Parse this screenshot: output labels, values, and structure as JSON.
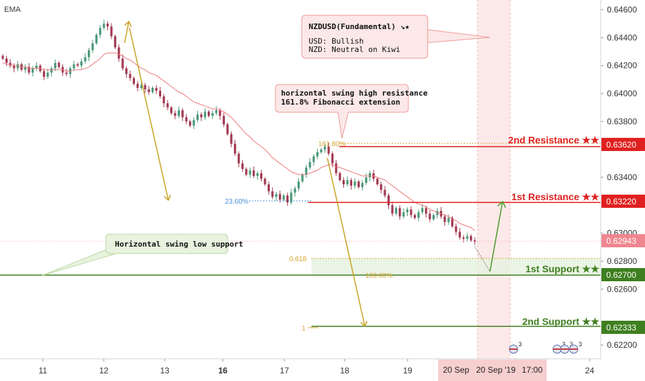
{
  "indicator_label": "EMA",
  "colors": {
    "bull": "#4c9a7a",
    "bear": "#a23a52",
    "ema": "#ec7a7a",
    "resistance": "#e02020",
    "support": "#3f7f1f",
    "fib": "#d9a233",
    "arrow_gold": "#c9a227",
    "arrow_green": "#4b9a2a",
    "price_tag": "#f0868f",
    "axis_text": "#333333"
  },
  "callouts": {
    "fundamental_title": "NZDUSD(Fundamental) ↘★",
    "fundamental_line1": "USD: Bullish",
    "fundamental_line2": "NZD: Neutral on Kiwi",
    "resistance_note_1": "horizontal swing high resistance",
    "resistance_note_2": "161.8% Fibonacci extension",
    "support_note": "Horizontal swing low support"
  },
  "levels": {
    "r2_label": "2nd Resistance ★★",
    "r2_price": "0.63620",
    "r1_label": "1st Resistance ★★",
    "r1_price": "0.63220",
    "current_price": "0.62943",
    "s1_label": "1st Support ★★",
    "s1_price": "0.62700",
    "s2_label": "2nd Support ★★",
    "s2_price": "0.62333"
  },
  "fib_labels": {
    "f1618": "161.80%",
    "f236": "23.60%",
    "f0618": "0.618",
    "f100": "100.00%",
    "f1": "1"
  },
  "events": {
    "e1": "3",
    "e2": "3",
    "e3": "3",
    "e4": "3"
  },
  "time_labels": {
    "t1": "20 Sep",
    "t2": "20 Sep '19",
    "t3": "17:00"
  },
  "chart_data": {
    "type": "candlestick",
    "symbol": "NZDUSD",
    "x_ticks": [
      "11",
      "12",
      "13",
      "16",
      "17",
      "18",
      "19",
      "24"
    ],
    "y_ticks": [
      "0.64600",
      "0.64400",
      "0.64200",
      "0.64000",
      "0.63800",
      "0.63600",
      "0.63400",
      "0.63200",
      "0.63000",
      "0.62800",
      "0.62600",
      "0.62400",
      "0.62200"
    ],
    "ylim": [
      0.6212,
      0.6468
    ],
    "horizontal_levels": [
      {
        "name": "2nd Resistance",
        "value": 0.6362
      },
      {
        "name": "1st Resistance",
        "value": 0.6322
      },
      {
        "name": "1st Support",
        "value": 0.627
      },
      {
        "name": "2nd Support",
        "value": 0.62333
      }
    ],
    "close_path": [
      0.6425,
      0.6422,
      0.642,
      0.6418,
      0.6421,
      0.6417,
      0.6419,
      0.6415,
      0.6418,
      0.642,
      0.6416,
      0.6412,
      0.6415,
      0.6418,
      0.6422,
      0.6419,
      0.6415,
      0.6414,
      0.6418,
      0.6421,
      0.642,
      0.6423,
      0.6426,
      0.6431,
      0.6436,
      0.6442,
      0.6447,
      0.645,
      0.6448,
      0.6441,
      0.6433,
      0.6425,
      0.6418,
      0.6414,
      0.6411,
      0.6407,
      0.6404,
      0.6406,
      0.6403,
      0.6401,
      0.6404,
      0.6402,
      0.6398,
      0.6393,
      0.639,
      0.6386,
      0.6384,
      0.6388,
      0.6383,
      0.638,
      0.6377,
      0.6381,
      0.6385,
      0.6383,
      0.6387,
      0.6384,
      0.6386,
      0.6388,
      0.6384,
      0.6378,
      0.6371,
      0.6364,
      0.6357,
      0.635,
      0.6346,
      0.6342,
      0.6345,
      0.6341,
      0.6343,
      0.6339,
      0.6335,
      0.633,
      0.6326,
      0.6328,
      0.6324,
      0.6327,
      0.6322,
      0.6329,
      0.6332,
      0.6337,
      0.6342,
      0.6347,
      0.6351,
      0.6355,
      0.6358,
      0.636,
      0.6362,
      0.6357,
      0.635,
      0.6343,
      0.6338,
      0.6335,
      0.6338,
      0.6334,
      0.6337,
      0.6333,
      0.6336,
      0.634,
      0.6343,
      0.6339,
      0.6335,
      0.6331,
      0.6327,
      0.632,
      0.6314,
      0.6318,
      0.6312,
      0.6315,
      0.6317,
      0.6313,
      0.6311,
      0.6315,
      0.6318,
      0.6314,
      0.631,
      0.6313,
      0.6316,
      0.6312,
      0.6308,
      0.6311,
      0.6305,
      0.6301,
      0.6297,
      0.6296,
      0.6298,
      0.6295,
      0.6294
    ],
    "ema_path": [
      0.6422,
      0.6421,
      0.6421,
      0.642,
      0.642,
      0.6419,
      0.6419,
      0.6418,
      0.6418,
      0.6418,
      0.6418,
      0.6417,
      0.6417,
      0.6417,
      0.6417,
      0.6417,
      0.6417,
      0.6416,
      0.6416,
      0.6417,
      0.6417,
      0.6417,
      0.6418,
      0.6419,
      0.6421,
      0.6423,
      0.6425,
      0.6428,
      0.6429,
      0.6429,
      0.6429,
      0.6428,
      0.6427,
      0.6425,
      0.6424,
      0.6422,
      0.642,
      0.6418,
      0.6417,
      0.6415,
      0.6414,
      0.6413,
      0.6411,
      0.6409,
      0.6407,
      0.6405,
      0.6403,
      0.6401,
      0.64,
      0.6398,
      0.6396,
      0.6394,
      0.6393,
      0.6392,
      0.6391,
      0.639,
      0.6389,
      0.6389,
      0.6388,
      0.6387,
      0.6385,
      0.6383,
      0.638,
      0.6377,
      0.6374,
      0.6371,
      0.6369,
      0.6366,
      0.6364,
      0.6362,
      0.636,
      0.6357,
      0.6354,
      0.6352,
      0.635,
      0.6348,
      0.6346,
      0.6344,
      0.6343,
      0.6342,
      0.6342,
      0.6342,
      0.6343,
      0.6344,
      0.6345,
      0.6347,
      0.6348,
      0.6349,
      0.6349,
      0.6348,
      0.6347,
      0.6346,
      0.6345,
      0.6344,
      0.6343,
      0.6342,
      0.6341,
      0.6341,
      0.6341,
      0.6341,
      0.634,
      0.6339,
      0.6338,
      0.6336,
      0.6334,
      0.6332,
      0.633,
      0.6328,
      0.6326,
      0.6324,
      0.6322,
      0.6321,
      0.632,
      0.6319,
      0.6317,
      0.6316,
      0.6315,
      0.6314,
      0.6313,
      0.6312,
      0.631,
      0.6309,
      0.6307,
      0.6306,
      0.6305,
      0.6304,
      0.6302
    ]
  }
}
